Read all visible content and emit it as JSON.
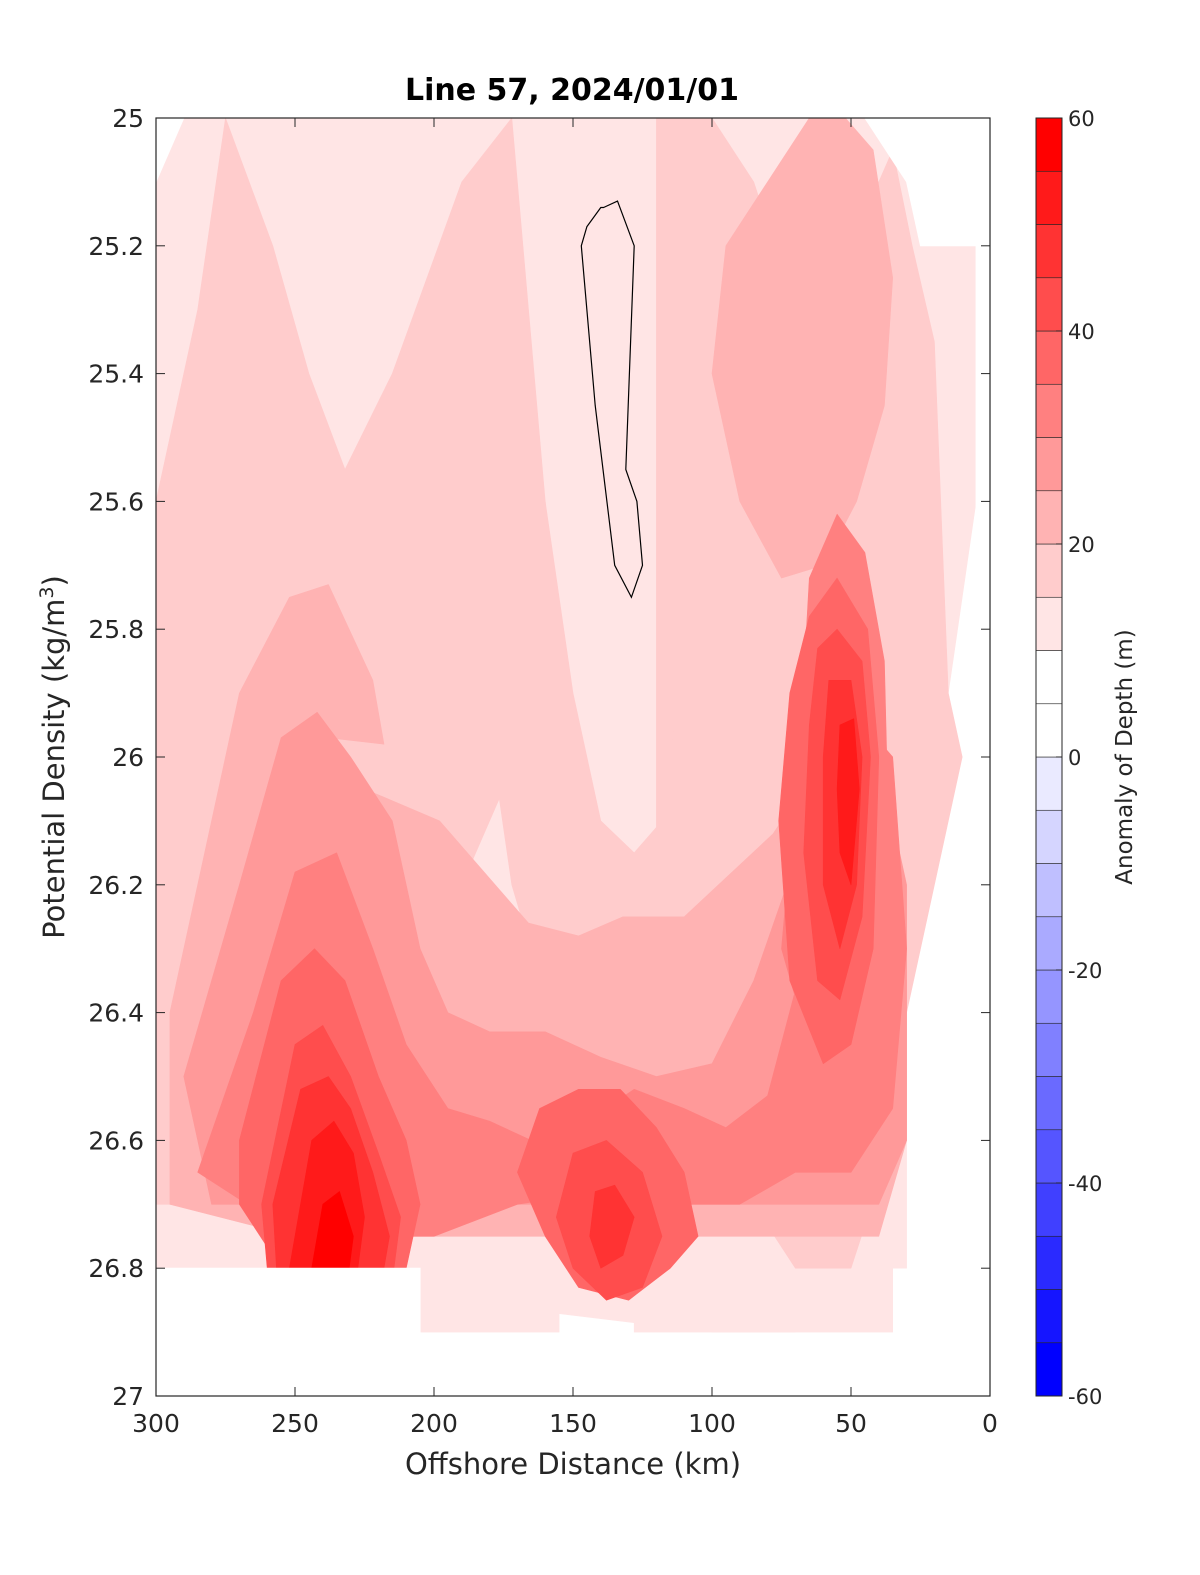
{
  "chart_data": {
    "type": "heatmap",
    "title": "Line 57, 2024/01/01",
    "xlabel": "Offshore Distance (km)",
    "ylabel_base": "Potential Density (kg/m",
    "ylabel_sup": "3",
    "ylabel_close": ")",
    "xlim": [
      300,
      0
    ],
    "ylim": [
      25,
      27
    ],
    "x_ticks": [
      300,
      250,
      200,
      150,
      100,
      50,
      0
    ],
    "x_tick_labels": [
      "300",
      "250",
      "200",
      "150",
      "100",
      "50",
      "0"
    ],
    "y_ticks": [
      25,
      25.2,
      25.4,
      25.6,
      25.8,
      26,
      26.2,
      26.4,
      26.6,
      26.8,
      27
    ],
    "y_tick_labels": [
      "25",
      "25.2",
      "25.4",
      "25.6",
      "25.8",
      "26",
      "26.2",
      "26.4",
      "26.6",
      "26.8",
      "27"
    ],
    "colorbar": {
      "label": "Anomaly of Depth (m)",
      "range": [
        -60,
        60
      ],
      "ticks": [
        60,
        40,
        20,
        0,
        -20,
        -40,
        -60
      ],
      "tick_labels": [
        "60",
        "40",
        "20",
        "0",
        "-20",
        "-40",
        "-60"
      ],
      "levels": [
        -60,
        -55,
        -50,
        -45,
        -40,
        -35,
        -30,
        -25,
        -20,
        -15,
        -10,
        -5,
        0,
        5,
        10,
        15,
        20,
        25,
        30,
        35,
        40,
        45,
        50,
        55,
        60
      ],
      "colors": [
        "#0000ff",
        "#1515ff",
        "#2a2aff",
        "#4040ff",
        "#5555ff",
        "#6a6aff",
        "#8080ff",
        "#9595ff",
        "#aaaaff",
        "#bfbfff",
        "#d5d5ff",
        "#eaeaff",
        "#ffffff",
        "#ffffff",
        "#ffe5e5",
        "#ffcccc",
        "#ffb3b3",
        "#ff9999",
        "#ff8080",
        "#ff6666",
        "#ff4d4d",
        "#ff3333",
        "#ff1a1a",
        "#ff0000"
      ]
    },
    "zero_contour": {
      "x": [
        139,
        134,
        128,
        131,
        127,
        125,
        129,
        135,
        142,
        147,
        145,
        140,
        139
      ],
      "y": [
        25.14,
        25.13,
        25.2,
        25.55,
        25.6,
        25.7,
        25.75,
        25.7,
        25.45,
        25.2,
        25.17,
        25.14,
        25.14
      ]
    },
    "regions": [
      {
        "level": 10,
        "x": [
          300,
          290,
          285,
          285,
          290,
          300,
          300
        ],
        "y": [
          25,
          25,
          25.2,
          26.8,
          26.8,
          26.8,
          25
        ]
      },
      {
        "level": 10,
        "x": [
          290,
          100,
          100,
          100,
          70,
          70,
          50,
          50,
          50,
          30,
          30,
          25,
          25,
          5,
          5,
          5,
          15,
          20,
          30,
          30,
          46,
          46,
          100,
          290
        ],
        "y": [
          25,
          25,
          25,
          25,
          25,
          25,
          25,
          25,
          25,
          25,
          25.1,
          25.1,
          25.2,
          25.2,
          25.2,
          25.6,
          25.9,
          26,
          26.2,
          26.8,
          26.8,
          26.9,
          26.9,
          26.8
        ]
      },
      {
        "level": 10,
        "x": [
          220,
          300,
          300,
          220,
          220,
          220,
          220,
          205,
          205,
          155,
          155,
          145,
          145,
          128,
          128,
          70,
          70,
          55,
          55,
          46,
          46,
          35,
          35,
          220
        ],
        "y": [
          26.8,
          26.8,
          26.8,
          26.8,
          26.8,
          26.8,
          26.8,
          26.8,
          26.9,
          26.9,
          26.8,
          26.8,
          26.8,
          26.8,
          26.9,
          26.9,
          26.8,
          26.8,
          26.8,
          26.8,
          26.9,
          26.9,
          26.8,
          26.8
        ]
      },
      {
        "level": 15,
        "x": [
          275,
          258,
          245,
          232,
          215,
          190,
          172,
          158,
          170,
          190,
          260,
          285,
          300,
          300,
          285,
          275
        ],
        "y": [
          25,
          25.2,
          25.4,
          25.55,
          25.4,
          25.1,
          25,
          25.7,
          26.0,
          26.2,
          26.6,
          26.7,
          26.7,
          25.6,
          25.3,
          25
        ]
      },
      {
        "level": 15,
        "x": [
          120,
          100,
          85,
          70,
          55,
          45,
          40,
          35,
          28,
          20,
          15,
          10,
          20,
          30,
          35,
          50,
          70,
          100,
          120
        ],
        "y": [
          25,
          25,
          25.1,
          25.3,
          25.4,
          25.35,
          25.1,
          25.05,
          25.2,
          25.35,
          25.9,
          26,
          26.2,
          26.4,
          26.6,
          26.8,
          26.8,
          26.6,
          26.2
        ]
      },
      {
        "level": 15,
        "x": [
          160,
          150,
          140,
          128,
          118,
          112,
          118,
          135,
          155,
          172,
          182,
          170,
          160
        ],
        "y": [
          25.6,
          25.9,
          26.1,
          26.15,
          26.1,
          25.9,
          26.3,
          26.45,
          26.45,
          26.2,
          25.9,
          25.7,
          25.6
        ]
      },
      {
        "level": 20,
        "x": [
          295,
          270,
          252,
          238,
          222,
          218,
          238,
          242,
          225,
          198,
          182,
          166,
          148,
          132,
          110,
          78,
          60,
          45,
          35,
          30,
          30,
          40,
          60,
          82,
          110,
          160,
          210,
          250,
          295
        ],
        "y": [
          26.4,
          25.9,
          25.75,
          25.73,
          25.88,
          25.98,
          25.97,
          25.99,
          26.05,
          26.1,
          26.18,
          26.26,
          26.28,
          26.25,
          26.25,
          26.12,
          26.0,
          26.15,
          26.25,
          26.35,
          26.6,
          26.75,
          26.75,
          26.75,
          26.75,
          26.75,
          26.75,
          26.75,
          26.7
        ]
      },
      {
        "level": 20,
        "x": [
          95,
          80,
          65,
          52,
          42,
          35,
          38,
          48,
          60,
          75,
          90,
          100,
          95
        ],
        "y": [
          25.2,
          25.1,
          25.0,
          25.0,
          25.05,
          25.25,
          25.45,
          25.6,
          25.7,
          25.72,
          25.6,
          25.4,
          25.2
        ]
      },
      {
        "level": 25,
        "x": [
          290,
          270,
          255,
          242,
          230,
          215,
          205,
          195,
          180,
          160,
          140,
          120,
          100,
          85,
          65,
          55,
          40,
          30,
          30,
          40,
          60,
          80,
          120,
          160,
          200,
          240,
          280,
          290
        ],
        "y": [
          26.5,
          26.2,
          25.97,
          25.93,
          26.0,
          26.1,
          26.3,
          26.4,
          26.43,
          26.43,
          26.47,
          26.5,
          26.48,
          26.35,
          26.1,
          25.95,
          26.0,
          26.2,
          26.6,
          26.7,
          26.7,
          26.7,
          26.7,
          26.7,
          26.7,
          26.7,
          26.7,
          26.5
        ]
      },
      {
        "level": 30,
        "x": [
          285,
          265,
          250,
          235,
          222,
          210,
          195,
          180,
          165,
          145,
          128,
          110,
          95,
          80,
          60,
          45,
          35,
          30,
          35,
          50,
          70,
          90,
          110,
          140,
          170,
          200,
          230,
          260,
          285
        ],
        "y": [
          26.65,
          26.4,
          26.18,
          26.15,
          26.3,
          26.45,
          26.55,
          26.57,
          26.6,
          26.57,
          26.52,
          26.55,
          26.58,
          26.53,
          26.2,
          25.95,
          26.0,
          26.3,
          26.55,
          26.65,
          26.65,
          26.7,
          26.7,
          26.68,
          26.7,
          26.75,
          26.75,
          26.72,
          26.65
        ]
      },
      {
        "level": 30,
        "x": [
          65,
          55,
          45,
          38,
          36,
          40,
          50,
          62,
          75,
          68,
          65
        ],
        "y": [
          25.72,
          25.62,
          25.68,
          25.85,
          26.2,
          26.4,
          26.55,
          26.5,
          26.3,
          25.95,
          25.72
        ]
      },
      {
        "level": 35,
        "x": [
          270,
          255,
          243,
          232,
          220,
          210,
          205,
          210,
          225,
          240,
          255,
          270,
          270
        ],
        "y": [
          26.6,
          26.35,
          26.3,
          26.35,
          26.5,
          26.6,
          26.7,
          26.8,
          26.85,
          26.85,
          26.8,
          26.7,
          26.6
        ]
      },
      {
        "level": 35,
        "x": [
          162,
          148,
          133,
          120,
          110,
          105,
          115,
          130,
          148,
          160,
          170,
          162
        ],
        "y": [
          26.55,
          26.52,
          26.52,
          26.58,
          26.65,
          26.75,
          26.8,
          26.85,
          26.83,
          26.75,
          26.65,
          26.55
        ]
      },
      {
        "level": 35,
        "x": [
          65,
          55,
          44,
          40,
          42,
          50,
          60,
          72,
          76,
          72,
          65
        ],
        "y": [
          25.78,
          25.72,
          25.8,
          26.0,
          26.3,
          26.45,
          26.48,
          26.35,
          26.1,
          25.9,
          25.78
        ]
      },
      {
        "level": 40,
        "x": [
          262,
          250,
          240,
          230,
          220,
          212,
          215,
          225,
          238,
          250,
          260,
          262
        ],
        "y": [
          26.7,
          26.45,
          26.42,
          26.5,
          26.62,
          26.72,
          26.82,
          26.88,
          26.88,
          26.85,
          26.8,
          26.7
        ]
      },
      {
        "level": 40,
        "x": [
          150,
          138,
          125,
          118,
          125,
          138,
          150,
          156,
          150
        ],
        "y": [
          26.62,
          26.6,
          26.65,
          26.75,
          26.83,
          26.85,
          26.8,
          26.72,
          26.62
        ]
      },
      {
        "level": 40,
        "x": [
          62,
          55,
          46,
          43,
          46,
          54,
          62,
          67,
          65,
          62
        ],
        "y": [
          25.83,
          25.8,
          25.85,
          26.0,
          26.25,
          26.38,
          26.35,
          26.15,
          25.95,
          25.83
        ]
      },
      {
        "level": 45,
        "x": [
          258,
          248,
          238,
          230,
          222,
          216,
          220,
          232,
          246,
          256,
          258
        ],
        "y": [
          26.7,
          26.52,
          26.5,
          26.55,
          26.65,
          26.75,
          26.85,
          26.9,
          26.9,
          26.85,
          26.7
        ]
      },
      {
        "level": 45,
        "x": [
          142,
          135,
          128,
          132,
          140,
          144,
          142
        ],
        "y": [
          26.68,
          26.67,
          26.72,
          26.78,
          26.8,
          26.75,
          26.68
        ]
      },
      {
        "level": 45,
        "x": [
          58,
          50,
          46,
          48,
          54,
          60,
          60,
          58
        ],
        "y": [
          25.88,
          25.88,
          26.0,
          26.2,
          26.3,
          26.2,
          26.0,
          25.88
        ]
      },
      {
        "level": 50,
        "x": [
          252,
          244,
          236,
          229,
          225,
          228,
          236,
          246,
          253,
          252
        ],
        "y": [
          26.8,
          26.6,
          26.57,
          26.62,
          26.72,
          26.82,
          26.88,
          26.88,
          26.85,
          26.8
        ]
      },
      {
        "level": 50,
        "x": [
          54,
          49,
          47,
          50,
          54,
          55,
          54
        ],
        "y": [
          25.95,
          25.94,
          26.05,
          26.2,
          26.15,
          26.05,
          25.95
        ]
      },
      {
        "level": 55,
        "x": [
          246,
          240,
          234,
          229,
          232,
          240,
          247,
          246
        ],
        "y": [
          26.85,
          26.7,
          26.68,
          26.75,
          26.85,
          26.88,
          26.88,
          26.85
        ]
      }
    ],
    "white_masks": [
      {
        "x": [
          300,
          205,
          205,
          300,
          300
        ],
        "y": [
          26.8,
          26.8,
          27,
          27,
          26.8
        ]
      },
      {
        "x": [
          300,
          300,
          290,
          285,
          300
        ],
        "y": [
          25,
          25.1,
          25,
          25,
          25
        ]
      },
      {
        "x": [
          45,
          30,
          30,
          25,
          25,
          0,
          0,
          45
        ],
        "y": [
          25,
          25.1,
          25.1,
          25.2,
          25.2,
          25.2,
          25,
          25
        ]
      },
      {
        "x": [
          5,
          0,
          0,
          5,
          5
        ],
        "y": [
          25.2,
          25.2,
          27,
          27,
          25.2
        ]
      }
    ]
  }
}
